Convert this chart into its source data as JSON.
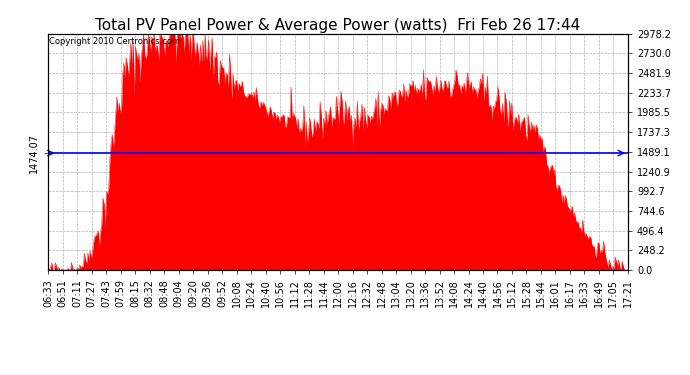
{
  "title": "Total PV Panel Power & Average Power (watts)  Fri Feb 26 17:44",
  "copyright": "Copyright 2010 Certronics.com",
  "avg_power": 1474.07,
  "y_max": 2978.2,
  "y_ticks": [
    0.0,
    248.2,
    496.4,
    744.6,
    992.7,
    1240.9,
    1489.1,
    1737.3,
    1985.5,
    2233.7,
    2481.9,
    2730.0,
    2978.2
  ],
  "x_labels": [
    "06:33",
    "06:51",
    "07:11",
    "07:27",
    "07:43",
    "07:59",
    "08:15",
    "08:32",
    "08:48",
    "09:04",
    "09:20",
    "09:36",
    "09:52",
    "10:08",
    "10:24",
    "10:40",
    "10:56",
    "11:12",
    "11:28",
    "11:44",
    "12:00",
    "12:16",
    "12:32",
    "12:48",
    "13:04",
    "13:20",
    "13:36",
    "13:52",
    "14:08",
    "14:24",
    "14:40",
    "14:56",
    "15:12",
    "15:28",
    "15:44",
    "16:01",
    "16:17",
    "16:33",
    "16:49",
    "17:05",
    "17:21"
  ],
  "fill_color": "#FF0000",
  "line_color": "#0000FF",
  "background_color": "#FFFFFF",
  "grid_color": "#AAAAAA",
  "title_fontsize": 11,
  "tick_fontsize": 7,
  "avg_label_fontsize": 7,
  "copyright_fontsize": 6,
  "key_points": [
    [
      6.55,
      0
    ],
    [
      6.75,
      2
    ],
    [
      6.9,
      5
    ],
    [
      7.0,
      10
    ],
    [
      7.1,
      25
    ],
    [
      7.2,
      80
    ],
    [
      7.3,
      180
    ],
    [
      7.4,
      350
    ],
    [
      7.5,
      550
    ],
    [
      7.6,
      800
    ],
    [
      7.65,
      1000
    ],
    [
      7.7,
      1300
    ],
    [
      7.75,
      1600
    ],
    [
      7.8,
      1900
    ],
    [
      7.85,
      2100
    ],
    [
      7.9,
      2200
    ],
    [
      7.95,
      2350
    ],
    [
      8.0,
      2500
    ],
    [
      8.05,
      2550
    ],
    [
      8.1,
      2600
    ],
    [
      8.15,
      2650
    ],
    [
      8.2,
      2700
    ],
    [
      8.25,
      2720
    ],
    [
      8.3,
      2750
    ],
    [
      8.35,
      2800
    ],
    [
      8.4,
      2820
    ],
    [
      8.45,
      2840
    ],
    [
      8.5,
      2860
    ],
    [
      8.55,
      2880
    ],
    [
      8.6,
      2900
    ],
    [
      8.65,
      2920
    ],
    [
      8.7,
      2940
    ],
    [
      8.75,
      2950
    ],
    [
      8.8,
      2960
    ],
    [
      8.85,
      2970
    ],
    [
      8.9,
      2975
    ],
    [
      8.95,
      2978
    ],
    [
      9.0,
      2970
    ],
    [
      9.05,
      2960
    ],
    [
      9.1,
      2940
    ],
    [
      9.15,
      2920
    ],
    [
      9.2,
      2900
    ],
    [
      9.25,
      2880
    ],
    [
      9.3,
      2860
    ],
    [
      9.35,
      2840
    ],
    [
      9.4,
      2820
    ],
    [
      9.45,
      2800
    ],
    [
      9.5,
      2780
    ],
    [
      9.55,
      2750
    ],
    [
      9.6,
      2700
    ],
    [
      9.65,
      2650
    ],
    [
      9.7,
      2600
    ],
    [
      9.75,
      2550
    ],
    [
      9.8,
      2500
    ],
    [
      9.85,
      2450
    ],
    [
      9.9,
      2400
    ],
    [
      10.0,
      2350
    ],
    [
      10.1,
      2300
    ],
    [
      10.2,
      2250
    ],
    [
      10.3,
      2200
    ],
    [
      10.4,
      2150
    ],
    [
      10.5,
      2100
    ],
    [
      10.6,
      2050
    ],
    [
      10.7,
      2000
    ],
    [
      10.8,
      1950
    ],
    [
      10.9,
      1900
    ],
    [
      11.0,
      1870
    ],
    [
      11.1,
      1840
    ],
    [
      11.2,
      1820
    ],
    [
      11.3,
      1800
    ],
    [
      11.4,
      1780
    ],
    [
      11.5,
      1820
    ],
    [
      11.6,
      1860
    ],
    [
      11.7,
      1900
    ],
    [
      11.8,
      1950
    ],
    [
      12.0,
      2000
    ],
    [
      12.1,
      1980
    ],
    [
      12.2,
      1960
    ],
    [
      12.3,
      1940
    ],
    [
      12.4,
      1920
    ],
    [
      12.5,
      1900
    ],
    [
      12.6,
      1950
    ],
    [
      12.7,
      2000
    ],
    [
      12.8,
      2050
    ],
    [
      12.9,
      2100
    ],
    [
      13.0,
      2150
    ],
    [
      13.1,
      2180
    ],
    [
      13.2,
      2200
    ],
    [
      13.3,
      2220
    ],
    [
      13.4,
      2250
    ],
    [
      13.5,
      2270
    ],
    [
      13.6,
      2290
    ],
    [
      13.7,
      2310
    ],
    [
      13.8,
      2330
    ],
    [
      13.9,
      2350
    ],
    [
      14.0,
      2360
    ],
    [
      14.1,
      2350
    ],
    [
      14.2,
      2340
    ],
    [
      14.3,
      2320
    ],
    [
      14.4,
      2300
    ],
    [
      14.5,
      2270
    ],
    [
      14.6,
      2240
    ],
    [
      14.7,
      2200
    ],
    [
      14.8,
      2150
    ],
    [
      14.9,
      2100
    ],
    [
      15.0,
      2050
    ],
    [
      15.1,
      2000
    ],
    [
      15.2,
      1950
    ],
    [
      15.3,
      1900
    ],
    [
      15.4,
      1850
    ],
    [
      15.5,
      1800
    ],
    [
      15.6,
      1750
    ],
    [
      15.65,
      1700
    ],
    [
      15.7,
      1650
    ],
    [
      15.75,
      1580
    ],
    [
      15.8,
      1500
    ],
    [
      15.85,
      1400
    ],
    [
      15.9,
      1300
    ],
    [
      16.0,
      1150
    ],
    [
      16.1,
      1000
    ],
    [
      16.2,
      880
    ],
    [
      16.3,
      760
    ],
    [
      16.4,
      640
    ],
    [
      16.5,
      520
    ],
    [
      16.6,
      420
    ],
    [
      16.7,
      330
    ],
    [
      16.8,
      250
    ],
    [
      16.9,
      180
    ],
    [
      17.0,
      120
    ],
    [
      17.1,
      70
    ],
    [
      17.2,
      30
    ],
    [
      17.3,
      8
    ],
    [
      17.35,
      0
    ]
  ],
  "noise_seed": 42,
  "noise_std": 60,
  "noise_morning_mult": 3.0,
  "noise_afternoon_mult": 2.0
}
